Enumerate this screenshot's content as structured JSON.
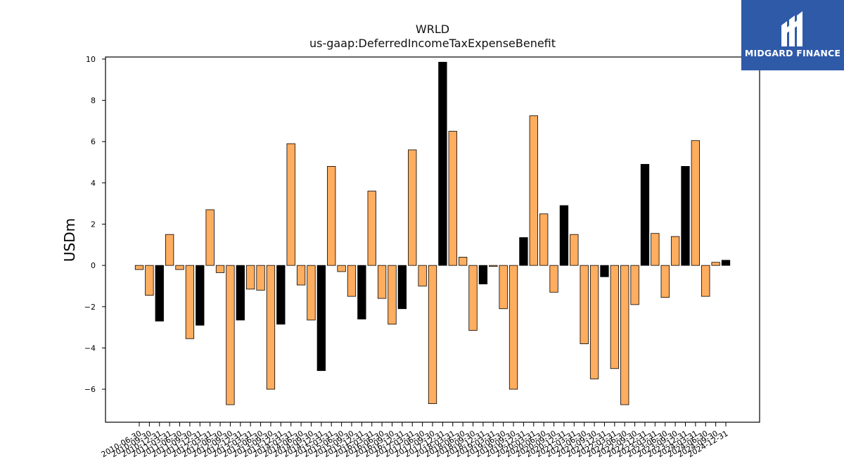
{
  "chart_data": {
    "type": "bar",
    "title": "WRLD",
    "subtitle": "us-gaap:DeferredIncomeTaxExpenseBenefit",
    "xlabel": "",
    "ylabel": "USDm",
    "ylim": [
      -7.6,
      10.1
    ],
    "yticks": [
      -6,
      -4,
      -2,
      0,
      2,
      4,
      6,
      8,
      10
    ],
    "ytick_labels": [
      "−6",
      "−4",
      "−2",
      "0",
      "2",
      "4",
      "6",
      "8",
      "10"
    ],
    "grid": false,
    "legend": "none",
    "colors": {
      "default": "#ffad5f",
      "highlight": "#000000",
      "edge": "#000000"
    },
    "categories": [
      "2010-06-30",
      "2010-09-30",
      "2010-12-31",
      "2011-03-31",
      "2011-06-30",
      "2011-09-30",
      "2011-12-31",
      "2012-03-31",
      "2012-06-30",
      "2012-09-30",
      "2012-12-31",
      "2013-03-31",
      "2013-06-30",
      "2013-09-30",
      "2013-12-31",
      "2014-03-31",
      "2014-06-30",
      "2014-09-30",
      "2014-12-31",
      "2015-03-31",
      "2015-06-30",
      "2015-09-30",
      "2015-12-31",
      "2016-03-31",
      "2016-06-30",
      "2016-09-30",
      "2016-12-31",
      "2017-03-31",
      "2017-06-30",
      "2017-09-30",
      "2017-12-31",
      "2018-03-31",
      "2018-06-30",
      "2018-09-30",
      "2018-12-31",
      "2019-03-31",
      "2019-06-30",
      "2019-09-30",
      "2019-12-31",
      "2020-03-31",
      "2020-06-30",
      "2020-09-30",
      "2020-12-31",
      "2021-03-31",
      "2021-06-30",
      "2021-09-30",
      "2021-12-31",
      "2022-03-31",
      "2022-06-30",
      "2022-09-30",
      "2022-12-31",
      "2023-03-31",
      "2023-06-30",
      "2023-09-30",
      "2023-12-31",
      "2024-03-31",
      "2024-06-30",
      "2024-09-30",
      "2024-12-31"
    ],
    "values": [
      -0.2,
      -1.45,
      -2.7,
      1.5,
      -0.2,
      -3.55,
      -2.9,
      2.7,
      -0.35,
      -6.75,
      -2.65,
      -1.15,
      -1.2,
      -6.0,
      -2.85,
      5.9,
      -0.95,
      -2.65,
      -5.1,
      4.8,
      -0.3,
      -1.5,
      -2.6,
      3.6,
      -1.6,
      -2.85,
      -2.1,
      5.6,
      -1.0,
      -6.7,
      9.85,
      6.5,
      0.4,
      -3.15,
      -0.9,
      -0.05,
      -2.1,
      -6.0,
      1.35,
      7.25,
      2.5,
      -1.3,
      2.9,
      1.5,
      -3.8,
      -5.5,
      -0.55,
      -5.0,
      -6.75,
      -1.9,
      4.9,
      1.55,
      -1.55,
      1.4,
      4.8,
      6.05,
      -1.5,
      0.15,
      0.25
    ],
    "highlight": [
      false,
      false,
      true,
      false,
      false,
      false,
      true,
      false,
      false,
      false,
      true,
      false,
      false,
      false,
      true,
      false,
      false,
      false,
      true,
      false,
      false,
      false,
      true,
      false,
      false,
      false,
      true,
      false,
      false,
      false,
      true,
      false,
      false,
      false,
      true,
      false,
      false,
      false,
      true,
      false,
      false,
      false,
      true,
      false,
      false,
      false,
      true,
      false,
      false,
      false,
      true,
      false,
      false,
      false,
      true,
      false,
      false,
      false,
      true
    ]
  },
  "logo": {
    "text": "MIDGARD FINANCE"
  }
}
